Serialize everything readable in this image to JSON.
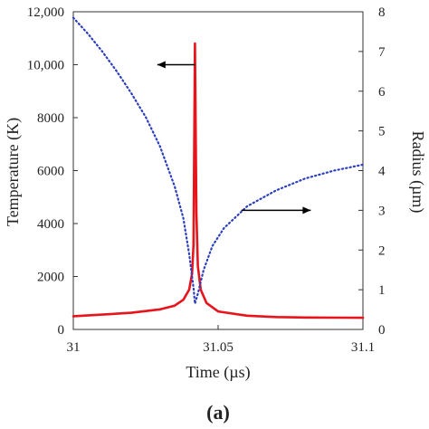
{
  "chart_data": {
    "type": "line",
    "panel_label": "(a)",
    "xlabel": "Time (µs)",
    "ylabel_left": "Temperature (K)",
    "ylabel_right": "Radius (µm)",
    "x_range": [
      31,
      31.1
    ],
    "x_ticks": [
      31,
      31.05,
      31.1
    ],
    "x_tick_labels": [
      "31",
      "31.05",
      "31.1"
    ],
    "y_left_range": [
      0,
      12000
    ],
    "y_left_ticks": [
      0,
      2000,
      4000,
      6000,
      8000,
      10000,
      12000
    ],
    "y_left_tick_labels": [
      "0",
      "2000",
      "4000",
      "6000",
      "8000",
      "10,000",
      "12,000"
    ],
    "y_right_range": [
      0,
      8
    ],
    "y_right_ticks": [
      0,
      1,
      2,
      3,
      4,
      5,
      6,
      7,
      8
    ],
    "y_right_tick_labels": [
      "0",
      "1",
      "2",
      "3",
      "4",
      "5",
      "6",
      "7",
      "8"
    ],
    "grid": false,
    "legend": "none",
    "series": [
      {
        "axis": "left",
        "style": "solid",
        "color": "#e8141c",
        "x": [
          31.0,
          31.01,
          31.02,
          31.03,
          31.035,
          31.038,
          31.04,
          31.041,
          31.0415,
          31.042,
          31.0425,
          31.043,
          31.044,
          31.046,
          31.05,
          31.06,
          31.07,
          31.08,
          31.1
        ],
        "y": [
          500,
          560,
          630,
          760,
          900,
          1120,
          1500,
          2100,
          3200,
          10800,
          4400,
          2400,
          1500,
          1000,
          680,
          520,
          470,
          450,
          440
        ]
      },
      {
        "axis": "right",
        "style": "dotted",
        "color": "#2b3fbf",
        "x": [
          31.0,
          31.005,
          31.01,
          31.015,
          31.02,
          31.025,
          31.03,
          31.035,
          31.038,
          31.04,
          31.0415,
          31.042,
          31.043,
          31.045,
          31.048,
          31.052,
          31.06,
          31.07,
          31.08,
          31.09,
          31.1
        ],
        "y": [
          7.85,
          7.45,
          7.0,
          6.5,
          5.95,
          5.35,
          4.6,
          3.6,
          2.8,
          1.9,
          1.05,
          0.65,
          0.9,
          1.5,
          2.1,
          2.55,
          3.1,
          3.5,
          3.8,
          4.0,
          4.15
        ]
      }
    ],
    "annotations": [
      {
        "type": "arrow",
        "direction": "left",
        "points_to": "left axis",
        "x_data": [
          31.042,
          31.029
        ],
        "y_left": 10000
      },
      {
        "type": "arrow",
        "direction": "right",
        "points_to": "right axis",
        "x_data": [
          31.058,
          31.082
        ],
        "y_right": 3.0
      }
    ]
  }
}
